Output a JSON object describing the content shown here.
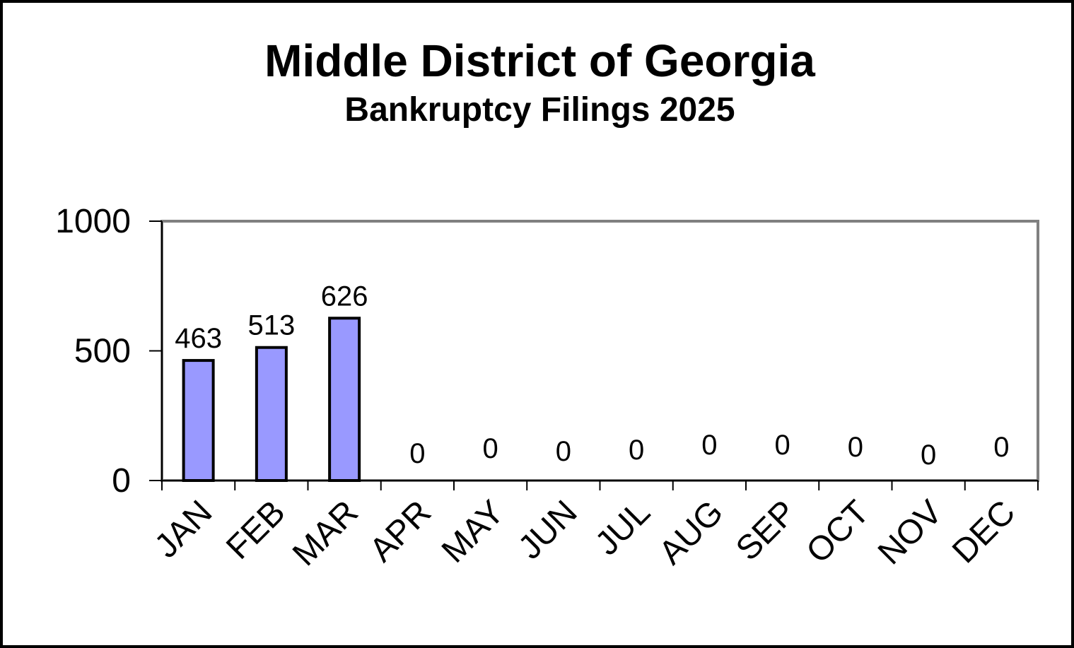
{
  "chart_data": {
    "type": "bar",
    "title": "Middle District of Georgia",
    "subtitle": "Bankruptcy Filings 2025",
    "categories": [
      "JAN",
      "FEB",
      "MAR",
      "APR",
      "MAY",
      "JUN",
      "JUL",
      "AUG",
      "SEP",
      "OCT",
      "NOV",
      "DEC"
    ],
    "values": [
      463,
      513,
      626,
      0,
      0,
      0,
      0,
      0,
      0,
      0,
      0,
      0
    ],
    "ylim": [
      0,
      1000
    ],
    "yticks": [
      0,
      500,
      1000
    ],
    "xlabel": "",
    "ylabel": "",
    "grid": false,
    "legend": "none",
    "bar_color": "#9999ff",
    "bar_edge_color": "#000000",
    "plot_border_color": "#808080"
  }
}
